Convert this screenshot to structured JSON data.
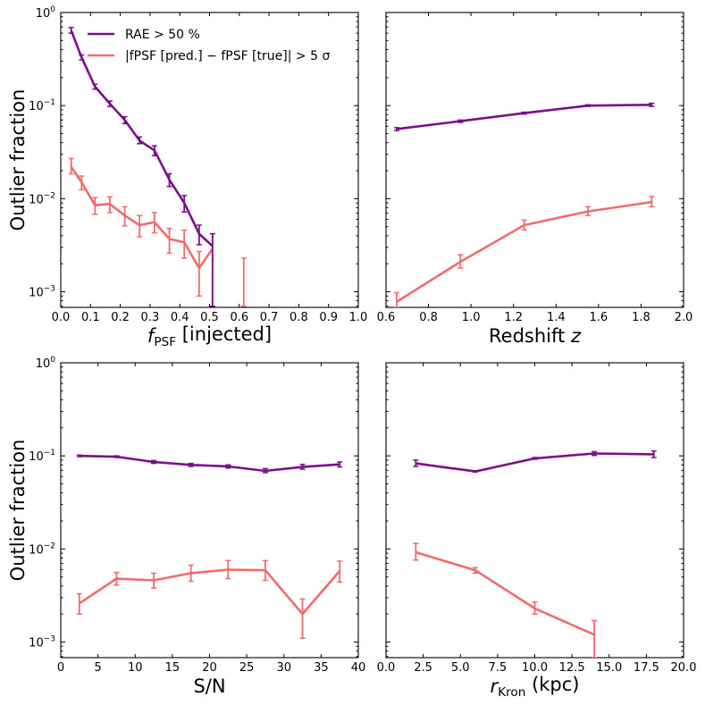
{
  "figure": {
    "ylabel_text": "Outlier fraction",
    "colors": {
      "purple": "#7b0f8a",
      "red": "#f26b6b"
    }
  },
  "legend": {
    "placement": "upper-left of top-left panel",
    "entries": [
      {
        "label": "RAE > 50 %",
        "series": "rae",
        "color": "#7b0f8a"
      },
      {
        "label": "|fPSF [pred.] − fPSF [true]| > 5 σ",
        "series": "sigma",
        "color": "#f26b6b"
      }
    ]
  },
  "chart_data": [
    {
      "type": "line",
      "panel": "top-left",
      "xlabel": "fPSF [injected]",
      "ylabel": "Outlier fraction",
      "xlim": [
        0.0,
        1.0
      ],
      "ylim": [
        0.00068,
        1.0
      ],
      "yscale": "log",
      "xticks": [
        "0.0",
        "0.1",
        "0.2",
        "0.3",
        "0.4",
        "0.5",
        "0.6",
        "0.7",
        "0.8",
        "0.9",
        "1.0"
      ],
      "xtick_values": [
        0.0,
        0.1,
        0.2,
        0.3,
        0.4,
        0.5,
        0.6,
        0.7,
        0.8,
        0.9,
        1.0
      ],
      "show_ytick_labels": true,
      "series": [
        {
          "name": "RAE > 50 %",
          "key": "rae",
          "color": "#7b0f8a",
          "x": [
            0.035,
            0.07,
            0.115,
            0.165,
            0.215,
            0.265,
            0.315,
            0.365,
            0.415,
            0.465,
            0.51
          ],
          "y": [
            0.64,
            0.33,
            0.16,
            0.105,
            0.07,
            0.042,
            0.033,
            0.016,
            0.009,
            0.0042,
            0.0031
          ],
          "err": [
            [
              0.6,
              0.69
            ],
            [
              0.31,
              0.35
            ],
            [
              0.15,
              0.17
            ],
            [
              0.098,
              0.112
            ],
            [
              0.064,
              0.076
            ],
            [
              0.039,
              0.046
            ],
            [
              0.029,
              0.037
            ],
            [
              0.0135,
              0.0185
            ],
            [
              0.0072,
              0.0108
            ],
            [
              0.0032,
              0.0052
            ],
            [
              0.0007,
              0.0042
            ]
          ]
        },
        {
          "name": "|fPSF [pred.] − fPSF [true]| > 5 σ",
          "key": "sigma",
          "color": "#f26b6b",
          "x": [
            0.035,
            0.07,
            0.115,
            0.165,
            0.215,
            0.265,
            0.315,
            0.365,
            0.415,
            0.465,
            0.51
          ],
          "y": [
            0.022,
            0.015,
            0.0085,
            0.0088,
            0.0066,
            0.0052,
            0.0056,
            0.0037,
            0.0034,
            0.0018,
            0.0029
          ],
          "err": [
            [
              0.0185,
              0.027
            ],
            [
              0.0125,
              0.0175
            ],
            [
              0.0068,
              0.0103
            ],
            [
              0.0071,
              0.0105
            ],
            [
              0.0051,
              0.0082
            ],
            [
              0.0039,
              0.0066
            ],
            [
              0.0043,
              0.0071
            ],
            [
              0.0026,
              0.0048
            ],
            [
              0.0023,
              0.0046
            ],
            [
              0.0009,
              0.0027
            ],
            [
              0.0007,
              0.0042
            ]
          ]
        },
        {
          "name": "",
          "key": "sigma-isolated",
          "color": "#f26b6b",
          "x": [
            0.615
          ],
          "y": [
            0.0012
          ],
          "err": [
            [
              0.0007,
              0.0023
            ]
          ],
          "markers_only": true
        }
      ]
    },
    {
      "type": "line",
      "panel": "top-right",
      "xlabel": "Redshift z",
      "ylabel": "",
      "xlim": [
        0.6,
        2.0
      ],
      "ylim": [
        0.00068,
        1.0
      ],
      "yscale": "log",
      "xticks": [
        "0.6",
        "0.8",
        "1.0",
        "1.2",
        "1.4",
        "1.6",
        "1.8",
        "2.0"
      ],
      "xtick_values": [
        0.6,
        0.8,
        1.0,
        1.2,
        1.4,
        1.6,
        1.8,
        2.0
      ],
      "show_ytick_labels": false,
      "series": [
        {
          "name": "RAE > 50 %",
          "key": "rae",
          "color": "#7b0f8a",
          "x": [
            0.65,
            0.95,
            1.25,
            1.55,
            1.85
          ],
          "y": [
            0.056,
            0.068,
            0.083,
            0.1,
            0.102
          ],
          "err": [
            [
              0.054,
              0.058
            ],
            [
              0.066,
              0.07
            ],
            [
              0.081,
              0.085
            ],
            [
              0.098,
              0.102
            ],
            [
              0.098,
              0.106
            ]
          ]
        },
        {
          "name": "|fPSF [pred.] − fPSF [true]| > 5 σ",
          "key": "sigma",
          "color": "#f26b6b",
          "x": [
            0.65,
            0.95,
            1.25,
            1.55,
            1.85
          ],
          "y": [
            0.00078,
            0.0021,
            0.0052,
            0.0073,
            0.0092
          ],
          "err": [
            [
              0.00068,
              0.00098
            ],
            [
              0.0018,
              0.0025
            ],
            [
              0.0046,
              0.0059
            ],
            [
              0.0066,
              0.0082
            ],
            [
              0.0082,
              0.0106
            ]
          ]
        }
      ]
    },
    {
      "type": "line",
      "panel": "bottom-left",
      "xlabel": "S/N",
      "ylabel": "Outlier fraction",
      "xlim": [
        0,
        40
      ],
      "ylim": [
        0.00068,
        1.0
      ],
      "yscale": "log",
      "xticks": [
        "0",
        "5",
        "10",
        "15",
        "20",
        "25",
        "30",
        "35",
        "40"
      ],
      "xtick_values": [
        0,
        5,
        10,
        15,
        20,
        25,
        30,
        35,
        40
      ],
      "show_ytick_labels": true,
      "series": [
        {
          "name": "RAE > 50 %",
          "key": "rae",
          "color": "#7b0f8a",
          "x": [
            2.5,
            7.5,
            12.5,
            17.5,
            22.5,
            27.5,
            32.5,
            37.5
          ],
          "y": [
            0.1,
            0.098,
            0.086,
            0.08,
            0.077,
            0.069,
            0.076,
            0.081
          ],
          "err": [
            [
              0.098,
              0.102
            ],
            [
              0.096,
              0.1
            ],
            [
              0.083,
              0.089
            ],
            [
              0.077,
              0.083
            ],
            [
              0.074,
              0.08
            ],
            [
              0.066,
              0.073
            ],
            [
              0.072,
              0.081
            ],
            [
              0.076,
              0.086
            ]
          ]
        },
        {
          "name": "|fPSF [pred.] − fPSF [true]| > 5 σ",
          "key": "sigma",
          "color": "#f26b6b",
          "x": [
            2.5,
            7.5,
            12.5,
            17.5,
            22.5,
            27.5,
            32.5,
            37.5
          ],
          "y": [
            0.0026,
            0.0048,
            0.0046,
            0.0055,
            0.006,
            0.0059,
            0.002,
            0.0058
          ],
          "err": [
            [
              0.002,
              0.0033
            ],
            [
              0.0041,
              0.0056
            ],
            [
              0.0038,
              0.0055
            ],
            [
              0.0045,
              0.0067
            ],
            [
              0.0048,
              0.0075
            ],
            [
              0.0046,
              0.0075
            ],
            [
              0.0011,
              0.0029
            ],
            [
              0.0044,
              0.0074
            ]
          ]
        }
      ]
    },
    {
      "type": "line",
      "panel": "bottom-right",
      "xlabel": "rKron (kpc)",
      "ylabel": "",
      "xlim": [
        0.0,
        20.0
      ],
      "ylim": [
        0.00068,
        1.0
      ],
      "yscale": "log",
      "xticks": [
        "0.0",
        "2.5",
        "5.0",
        "7.5",
        "10.0",
        "12.5",
        "15.0",
        "17.5",
        "20.0"
      ],
      "xtick_values": [
        0.0,
        2.5,
        5.0,
        7.5,
        10.0,
        12.5,
        15.0,
        17.5,
        20.0
      ],
      "show_ytick_labels": false,
      "series": [
        {
          "name": "RAE > 50 %",
          "key": "rae",
          "color": "#7b0f8a",
          "x": [
            2.0,
            6.0,
            10.0,
            14.0,
            18.0
          ],
          "y": [
            0.083,
            0.068,
            0.094,
            0.106,
            0.104
          ],
          "err": [
            [
              0.077,
              0.09
            ],
            [
              0.067,
              0.069
            ],
            [
              0.092,
              0.096
            ],
            [
              0.101,
              0.111
            ],
            [
              0.096,
              0.113
            ]
          ]
        },
        {
          "name": "|fPSF [pred.] − fPSF [true]| > 5 σ",
          "key": "sigma",
          "color": "#f26b6b",
          "x": [
            2.0,
            6.0,
            10.0,
            14.0
          ],
          "y": [
            0.0092,
            0.0059,
            0.0023,
            0.0012
          ],
          "err": [
            [
              0.0076,
              0.0115
            ],
            [
              0.0055,
              0.0063
            ],
            [
              0.002,
              0.0027
            ],
            [
              0.00068,
              0.0017
            ]
          ]
        }
      ]
    }
  ],
  "ytick_labels": [
    {
      "mantissa": "10",
      "exp": "0",
      "value": 1
    },
    {
      "mantissa": "10",
      "exp": "−1",
      "value": 0.1
    },
    {
      "mantissa": "10",
      "exp": "−2",
      "value": 0.01
    },
    {
      "mantissa": "10",
      "exp": "−3",
      "value": 0.001
    }
  ]
}
